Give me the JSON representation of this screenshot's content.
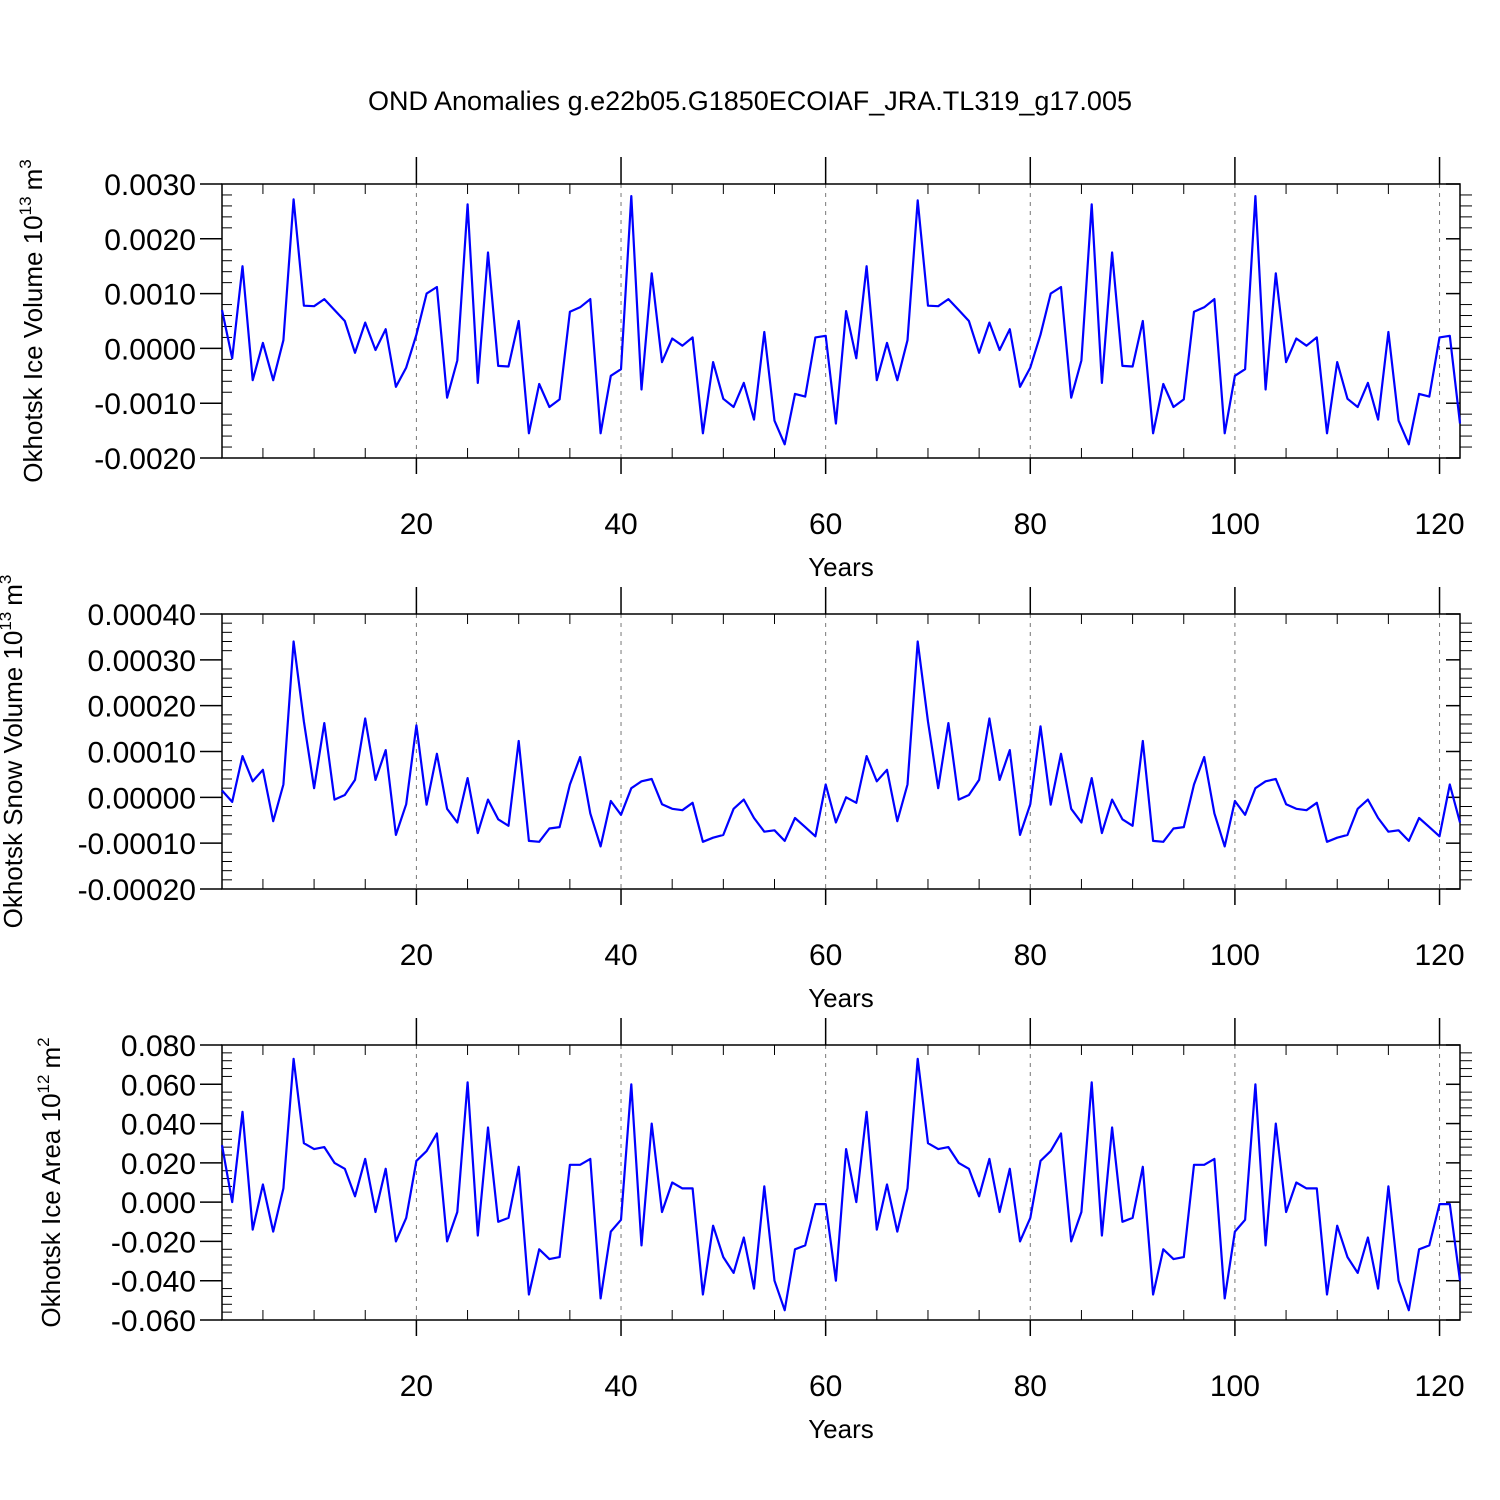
{
  "chart_data": [
    {
      "type": "line",
      "title": "OND Anomalies g.e22b05.G1850ECOIAF_JRA.TL319_g17.005",
      "xlabel": "Years",
      "ylabel": {
        "base": "Okhotsk Ice Volume 10",
        "exp": "13",
        "unit": "m",
        "unit_exp": "3"
      },
      "xlim": [
        1,
        122
      ],
      "ylim": [
        -0.002,
        0.003
      ],
      "grid": "vertical-dashed",
      "series_color": "#0000ff",
      "xticks": [
        20,
        40,
        60,
        80,
        100,
        120
      ],
      "yticks": [
        {
          "v": 0.003,
          "label": "0.0030"
        },
        {
          "v": 0.002,
          "label": "0.0020"
        },
        {
          "v": 0.001,
          "label": "0.0010"
        },
        {
          "v": 0.0,
          "label": "0.0000"
        },
        {
          "v": -0.001,
          "label": "-0.0010"
        },
        {
          "v": -0.002,
          "label": "-0.0020"
        }
      ],
      "values": [
        0.0007,
        -0.00018,
        0.0015,
        -0.00058,
        0.0001,
        -0.00058,
        0.00015,
        0.00272,
        0.00078,
        0.00077,
        0.0009,
        0.0007,
        0.0005,
        -8e-05,
        0.00047,
        -3e-05,
        0.00035,
        -0.0007,
        -0.00035,
        0.00025,
        0.001,
        0.00112,
        -0.0009,
        -0.00022,
        0.00263,
        -0.00063,
        0.00175,
        -0.00032,
        -0.00033,
        0.0005,
        -0.00155,
        -0.00065,
        -0.00107,
        -0.00093,
        0.00067,
        0.00075,
        0.0009,
        -0.00155,
        -0.0005,
        -0.00038,
        0.00278,
        -0.00075,
        0.00137,
        -0.00025,
        0.00018,
        5e-05,
        0.0002,
        -0.00155,
        -0.00025,
        -0.00092,
        -0.00107,
        -0.00063,
        -0.0013,
        0.0003,
        -0.00132,
        -0.00175,
        -0.00083,
        -0.00088,
        0.0002,
        0.00023,
        -0.00137,
        0.00068,
        -0.00018,
        0.0015,
        -0.00058,
        0.0001,
        -0.00058,
        0.00015,
        0.0027,
        0.00078,
        0.00077,
        0.0009,
        0.0007,
        0.0005,
        -8e-05,
        0.00047,
        -3e-05,
        0.00035,
        -0.0007,
        -0.00035,
        0.00025,
        0.001,
        0.00112,
        -0.0009,
        -0.00022,
        0.00263,
        -0.00063,
        0.00175,
        -0.00032,
        -0.00033,
        0.0005,
        -0.00155,
        -0.00065,
        -0.00107,
        -0.00093,
        0.00067,
        0.00075,
        0.0009,
        -0.00155,
        -0.0005,
        -0.00038,
        0.00278,
        -0.00075,
        0.00137,
        -0.00025,
        0.00018,
        5e-05,
        0.0002,
        -0.00155,
        -0.00025,
        -0.00092,
        -0.00107,
        -0.00063,
        -0.0013,
        0.0003,
        -0.00132,
        -0.00175,
        -0.00083,
        -0.00088,
        0.0002,
        0.00023,
        -0.00137
      ]
    },
    {
      "type": "line",
      "xlabel": "Years",
      "ylabel": {
        "base": "Okhotsk Snow Volume 10",
        "exp": "13",
        "unit": "m",
        "unit_exp": "3"
      },
      "xlim": [
        1,
        122
      ],
      "ylim": [
        -0.0002,
        0.0004
      ],
      "grid": "vertical-dashed",
      "series_color": "#0000ff",
      "xticks": [
        20,
        40,
        60,
        80,
        100,
        120
      ],
      "yticks": [
        {
          "v": 0.0004,
          "label": "0.00040"
        },
        {
          "v": 0.0003,
          "label": "0.00030"
        },
        {
          "v": 0.0002,
          "label": "0.00020"
        },
        {
          "v": 0.0001,
          "label": "0.00010"
        },
        {
          "v": 0.0,
          "label": "0.00000"
        },
        {
          "v": -0.0001,
          "label": "-0.00010"
        },
        {
          "v": -0.0002,
          "label": "-0.00020"
        }
      ],
      "values": [
        1.5e-05,
        -1e-05,
        9e-05,
        3.5e-05,
        6e-05,
        -5.2e-05,
        2.8e-05,
        0.00034,
        0.000165,
        2e-05,
        0.000162,
        -5e-06,
        5e-06,
        3.8e-05,
        0.000172,
        3.8e-05,
        0.000103,
        -8.2e-05,
        -1.5e-05,
        0.000157,
        -1.6e-05,
        9.5e-05,
        -2.5e-05,
        -5.5e-05,
        4.2e-05,
        -7.8e-05,
        -5e-06,
        -4.8e-05,
        -6.2e-05,
        0.000123,
        -9.5e-05,
        -9.7e-05,
        -6.8e-05,
        -6.5e-05,
        2.8e-05,
        8.8e-05,
        -3.5e-05,
        -0.000107,
        -8e-06,
        -3.8e-05,
        2e-05,
        3.5e-05,
        4e-05,
        -1.5e-05,
        -2.5e-05,
        -2.8e-05,
        -1.2e-05,
        -9.7e-05,
        -8.8e-05,
        -8.2e-05,
        -2.5e-05,
        -5e-06,
        -4.5e-05,
        -7.5e-05,
        -7.2e-05,
        -9.5e-05,
        -4.5e-05,
        -6.5e-05,
        -8.5e-05,
        2.8e-05,
        -5.5e-05,
        0.0,
        -1.2e-05,
        9e-05,
        3.5e-05,
        6e-05,
        -5.2e-05,
        2.8e-05,
        0.00034,
        0.000165,
        2e-05,
        0.000162,
        -5e-06,
        5e-06,
        3.8e-05,
        0.000172,
        3.8e-05,
        0.000103,
        -8.2e-05,
        -1.5e-05,
        0.000155,
        -1.6e-05,
        9.5e-05,
        -2.5e-05,
        -5.5e-05,
        4.2e-05,
        -7.8e-05,
        -5e-06,
        -4.8e-05,
        -6.2e-05,
        0.000123,
        -9.5e-05,
        -9.7e-05,
        -6.8e-05,
        -6.5e-05,
        2.8e-05,
        8.8e-05,
        -3.5e-05,
        -0.000107,
        -8e-06,
        -3.8e-05,
        2e-05,
        3.5e-05,
        4e-05,
        -1.5e-05,
        -2.5e-05,
        -2.8e-05,
        -1.2e-05,
        -9.7e-05,
        -8.8e-05,
        -8.2e-05,
        -2.5e-05,
        -5e-06,
        -4.5e-05,
        -7.5e-05,
        -7.2e-05,
        -9.5e-05,
        -4.5e-05,
        -6.5e-05,
        -8.5e-05,
        2.8e-05,
        -5.5e-05
      ]
    },
    {
      "type": "line",
      "xlabel": "Years",
      "ylabel": {
        "base": "Okhotsk Ice Area 10",
        "exp": "12",
        "unit": "m",
        "unit_exp": "2"
      },
      "xlim": [
        1,
        122
      ],
      "ylim": [
        -0.06,
        0.08
      ],
      "grid": "vertical-dashed",
      "series_color": "#0000ff",
      "xticks": [
        20,
        40,
        60,
        80,
        100,
        120
      ],
      "yticks": [
        {
          "v": 0.08,
          "label": "0.080"
        },
        {
          "v": 0.06,
          "label": "0.060"
        },
        {
          "v": 0.04,
          "label": "0.040"
        },
        {
          "v": 0.02,
          "label": "0.020"
        },
        {
          "v": 0.0,
          "label": "0.000"
        },
        {
          "v": -0.02,
          "label": "-0.020"
        },
        {
          "v": -0.04,
          "label": "-0.040"
        },
        {
          "v": -0.06,
          "label": "-0.060"
        }
      ],
      "values": [
        0.029,
        0.0,
        0.046,
        -0.014,
        0.009,
        -0.015,
        0.007,
        0.073,
        0.03,
        0.027,
        0.028,
        0.02,
        0.017,
        0.003,
        0.022,
        -0.005,
        0.017,
        -0.02,
        -0.008,
        0.021,
        0.026,
        0.035,
        -0.02,
        -0.005,
        0.061,
        -0.017,
        0.038,
        -0.01,
        -0.008,
        0.018,
        -0.047,
        -0.024,
        -0.029,
        -0.028,
        0.019,
        0.019,
        0.022,
        -0.049,
        -0.015,
        -0.009,
        0.06,
        -0.022,
        0.04,
        -0.005,
        0.01,
        0.007,
        0.007,
        -0.047,
        -0.012,
        -0.028,
        -0.036,
        -0.018,
        -0.044,
        0.008,
        -0.04,
        -0.055,
        -0.024,
        -0.022,
        -0.001,
        -0.001,
        -0.04,
        0.027,
        0.0,
        0.046,
        -0.014,
        0.009,
        -0.015,
        0.007,
        0.073,
        0.03,
        0.027,
        0.028,
        0.02,
        0.017,
        0.003,
        0.022,
        -0.005,
        0.017,
        -0.02,
        -0.008,
        0.021,
        0.026,
        0.035,
        -0.02,
        -0.005,
        0.061,
        -0.017,
        0.038,
        -0.01,
        -0.008,
        0.018,
        -0.047,
        -0.024,
        -0.029,
        -0.028,
        0.019,
        0.019,
        0.022,
        -0.049,
        -0.015,
        -0.009,
        0.06,
        -0.022,
        0.04,
        -0.005,
        0.01,
        0.007,
        0.007,
        -0.047,
        -0.012,
        -0.028,
        -0.036,
        -0.018,
        -0.044,
        0.008,
        -0.04,
        -0.055,
        -0.024,
        -0.022,
        -0.001,
        -0.001,
        -0.04
      ]
    }
  ]
}
